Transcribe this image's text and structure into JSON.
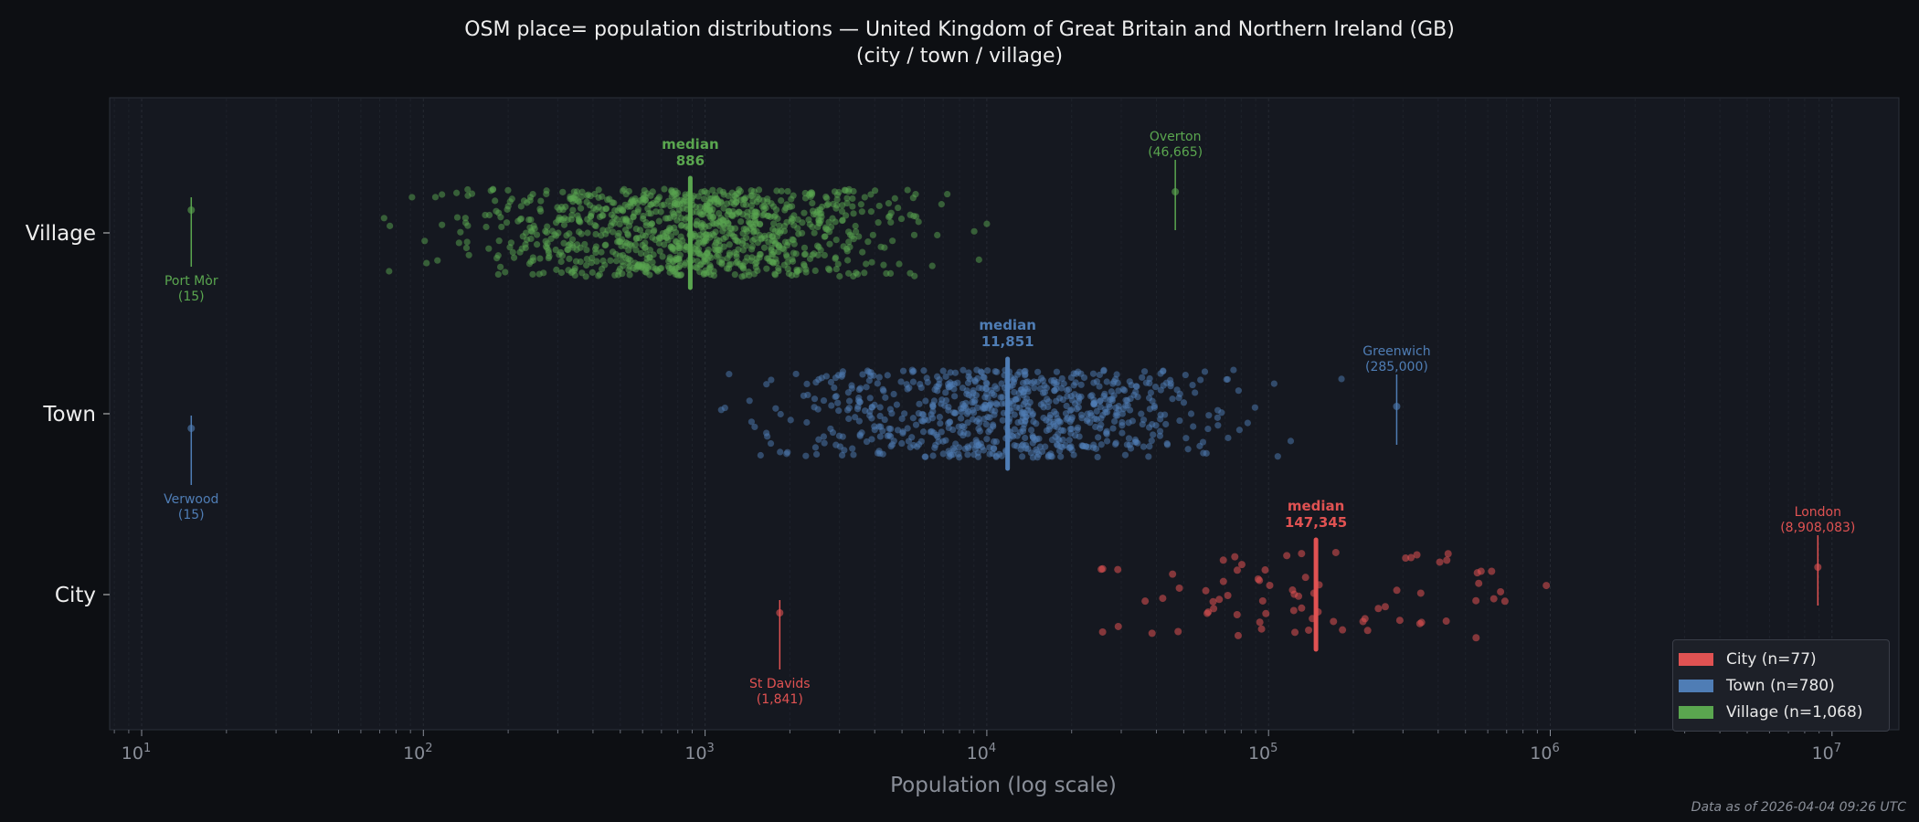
{
  "title_line1": "OSM place= population distributions — United Kingdom of Great Britain and Northern Ireland (GB)",
  "title_line2": "(city / town / village)",
  "footer": "Data as of 2026-04-04 09:26 UTC",
  "chart_data": {
    "type": "scatter",
    "subtype": "log-scale jittered strip plot",
    "xlabel": "Population (log scale)",
    "xscale": "log",
    "xlim": [
      8,
      18000000
    ],
    "xticks": [
      {
        "base": "10",
        "exp": "1"
      },
      {
        "base": "10",
        "exp": "2"
      },
      {
        "base": "10",
        "exp": "3"
      },
      {
        "base": "10",
        "exp": "4"
      },
      {
        "base": "10",
        "exp": "5"
      },
      {
        "base": "10",
        "exp": "6"
      },
      {
        "base": "10",
        "exp": "7"
      }
    ],
    "grid": "vertical minor and major, dashed",
    "legend_position": "bottom-right",
    "series": [
      {
        "key": "village",
        "name": "Village",
        "legend": "Village  (n=1,068)",
        "color": "#5aa64f",
        "n": 1068,
        "median": 886,
        "median_label": "median",
        "median_text": "886",
        "observed_range": [
          50,
          20000
        ],
        "min": {
          "name": "Port Mòr",
          "value": 15,
          "label1": "Port Mòr",
          "label2": "(15)"
        },
        "max": {
          "name": "Overton",
          "value": 46665,
          "label1": "Overton",
          "label2": "(46,665)"
        }
      },
      {
        "key": "town",
        "name": "Town",
        "legend": "Town  (n=780)",
        "color": "#4f7db5",
        "n": 780,
        "median": 11851,
        "median_label": "median",
        "median_text": "11,851",
        "observed_range": [
          550,
          250000
        ],
        "min": {
          "name": "Verwood",
          "value": 15,
          "label1": "Verwood",
          "label2": "(15)"
        },
        "max": {
          "name": "Greenwich",
          "value": 285000,
          "label1": "Greenwich",
          "label2": "(285,000)"
        }
      },
      {
        "key": "city",
        "name": "City",
        "legend": "City  (n=77)",
        "color": "#e05252",
        "n": 77,
        "median": 147345,
        "median_label": "median",
        "median_text": "147,345",
        "observed_range": [
          3500,
          1050000
        ],
        "min": {
          "name": "St Davids",
          "value": 1841,
          "label1": "St Davids",
          "label2": "(1,841)"
        },
        "max": {
          "name": "London",
          "value": 8908083,
          "label1": "London",
          "label2": "(8,908,083)"
        }
      }
    ],
    "categories": [
      "Village",
      "Town",
      "City"
    ]
  }
}
